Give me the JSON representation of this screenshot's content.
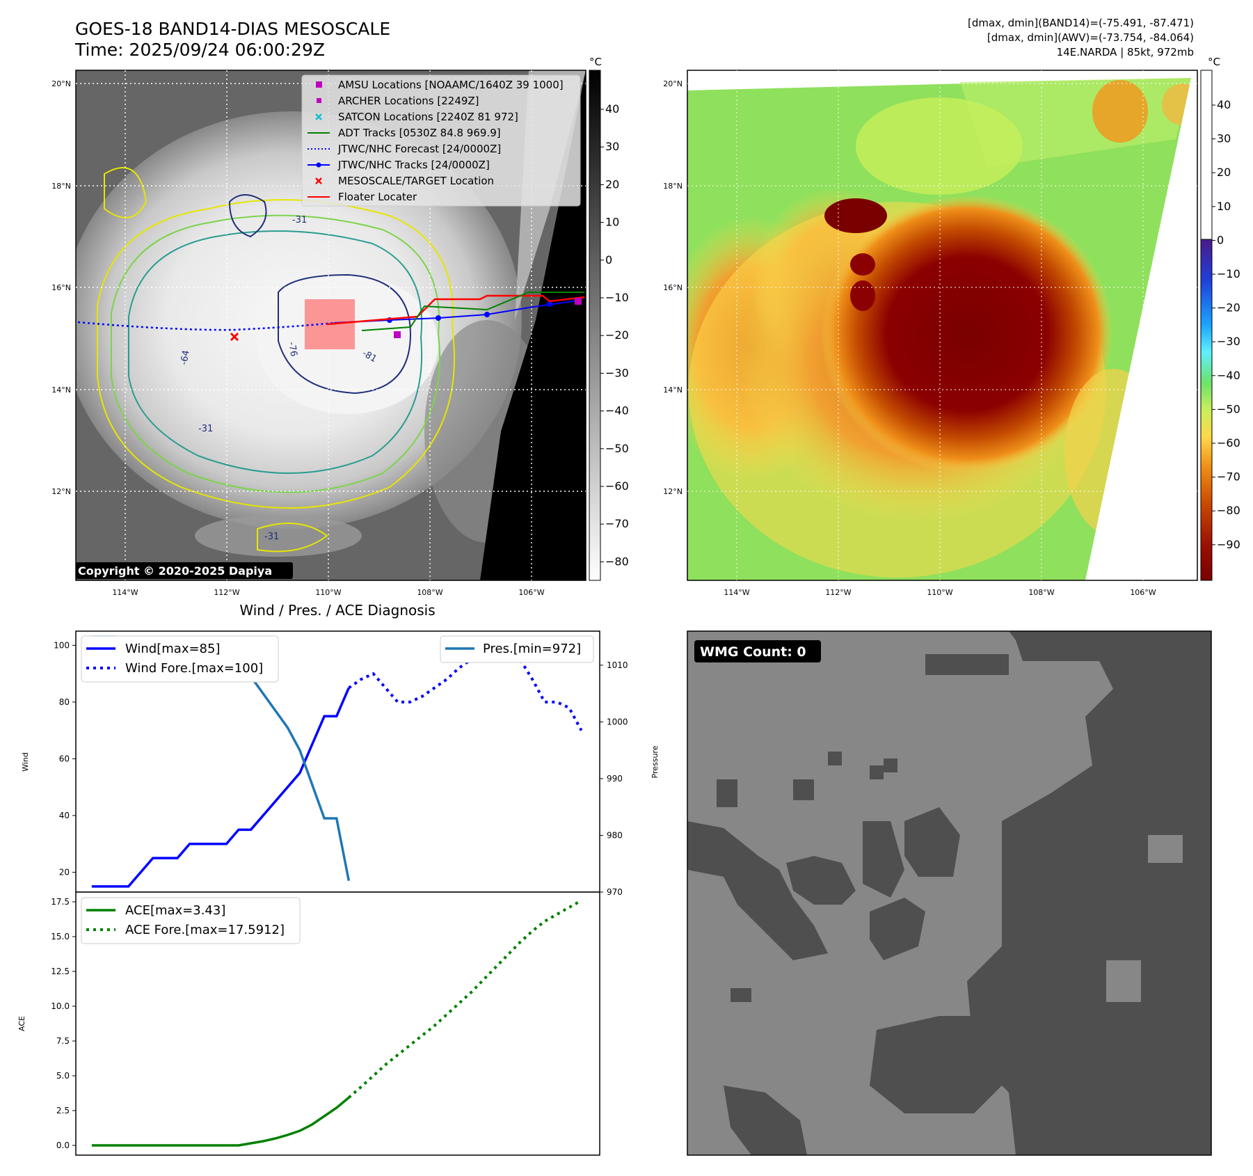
{
  "header": {
    "title_line1": "GOES-18 BAND14-DIAS MESOSCALE",
    "title_line2": "Time: 2025/09/24 06:00:29Z",
    "info_line1": "[dmax, dmin](BAND14)=(-75.491, -87.471)",
    "info_line2": "[dmax, dmin](AWV)=(-73.754, -84.064)",
    "info_line3": "14E.NARDA | 85kt, 972mb"
  },
  "ir_map": {
    "copyright": "Copyright © 2020-2025 Dapiya",
    "lat_labels": [
      "20°N",
      "18°N",
      "16°N",
      "14°N",
      "12°N"
    ],
    "lon_labels": [
      "114°W",
      "112°W",
      "110°W",
      "108°W",
      "106°W"
    ],
    "contour_labels": [
      "-31",
      "-64",
      "-76",
      "-81",
      "-31",
      "-31"
    ],
    "colorbar": {
      "unit": "°C",
      "ticks": [
        "40",
        "30",
        "20",
        "10",
        "0",
        "−10",
        "−20",
        "−30",
        "−40",
        "−50",
        "−60",
        "−70",
        "−80"
      ]
    },
    "legend": [
      {
        "label": "AMSU Locations [NOAAMC/1640Z 39 1000]",
        "color": "#c000c0",
        "marker": "square"
      },
      {
        "label": "ARCHER Locations [2249Z]",
        "color": "#c000c0",
        "marker": "square-small"
      },
      {
        "label": "SATCON Locations [2240Z 81 972]",
        "color": "#17becf",
        "marker": "x"
      },
      {
        "label": "ADT Tracks [0530Z 84.8 969.9]",
        "color": "#008000",
        "marker": "line"
      },
      {
        "label": "JTWC/NHC Forecast [24/0000Z]",
        "color": "#0000ff",
        "marker": "dotted"
      },
      {
        "label": "JTWC/NHC Tracks [24/0000Z]",
        "color": "#0000ff",
        "marker": "line-dot"
      },
      {
        "label": "MESOSCALE/TARGET Location",
        "color": "#ff0000",
        "marker": "x"
      },
      {
        "label": "Floater Locater",
        "color": "#ff0000",
        "marker": "line"
      }
    ]
  },
  "awv_map": {
    "lat_labels": [
      "20°N",
      "18°N",
      "16°N",
      "14°N",
      "12°N"
    ],
    "lon_labels": [
      "114°W",
      "112°W",
      "110°W",
      "108°W",
      "106°W"
    ],
    "colorbar": {
      "unit": "°C",
      "ticks": [
        "40",
        "30",
        "20",
        "10",
        "0",
        "−10",
        "−20",
        "−30",
        "−40",
        "−50",
        "−60",
        "−70",
        "−80",
        "−90"
      ]
    }
  },
  "diag_title": "Wind / Pres. / ACE Diagnosis",
  "wmg": {
    "label": "WMG Count: 0"
  },
  "chart_data": [
    {
      "type": "line",
      "title": "Wind / Pres. / ACE Diagnosis",
      "ylabel": "Wind",
      "y2label": "Pressure",
      "ylim": [
        13,
        105
      ],
      "y2lim": [
        970,
        1016
      ],
      "yticks": [
        "20",
        "40",
        "60",
        "80",
        "100"
      ],
      "y2ticks": [
        "970",
        "980",
        "990",
        "1000",
        "1010"
      ],
      "legend_left": [
        "Wind[max=85]",
        "Wind Fore.[max=100]"
      ],
      "legend_right": [
        "Pres.[min=972]"
      ],
      "series": [
        {
          "name": "Wind[max=85]",
          "color": "#0000ff",
          "style": "solid",
          "x": [
            0,
            1,
            2,
            3,
            4,
            5,
            6,
            7,
            8,
            9,
            10,
            11,
            12,
            13,
            14,
            15,
            16,
            17,
            18,
            19,
            20,
            21
          ],
          "values": [
            15,
            15,
            15,
            15,
            20,
            25,
            25,
            25,
            30,
            30,
            30,
            30,
            35,
            35,
            40,
            45,
            50,
            55,
            65,
            75,
            75,
            85
          ]
        },
        {
          "name": "Wind Fore.[max=100]",
          "color": "#0000ff",
          "style": "dotted",
          "x": [
            21,
            22,
            23,
            24,
            25,
            26,
            27,
            28,
            29,
            30,
            31,
            32,
            33,
            34,
            35,
            36,
            37,
            38,
            39,
            40
          ],
          "values": [
            85,
            88,
            90,
            85,
            80,
            80,
            82,
            85,
            88,
            92,
            95,
            100,
            95,
            95,
            95,
            88,
            80,
            80,
            78,
            70
          ]
        },
        {
          "name": "Pres.[min=972]",
          "color": "#1f77b4",
          "style": "solid",
          "axis": "right",
          "x": [
            0,
            1,
            2,
            3,
            4,
            5,
            6,
            7,
            8,
            9,
            10,
            11,
            12,
            13,
            14,
            15,
            16,
            17,
            18,
            19,
            20,
            21
          ],
          "values": [
            1015,
            1015,
            1015,
            1013,
            1011,
            1010,
            1010,
            1010,
            1010,
            1010,
            1010,
            1010,
            1008,
            1008,
            1005,
            1002,
            999,
            995,
            989,
            983,
            983,
            972
          ]
        }
      ]
    },
    {
      "type": "line",
      "ylabel": "ACE",
      "ylim": [
        -0.7,
        18.2
      ],
      "yticks": [
        "0.0",
        "2.5",
        "5.0",
        "7.5",
        "10.0",
        "12.5",
        "15.0",
        "17.5"
      ],
      "legend": [
        "ACE[max=3.43]",
        "ACE Fore.[max=17.5912]"
      ],
      "series": [
        {
          "name": "ACE[max=3.43]",
          "color": "#008000",
          "style": "solid",
          "x": [
            0,
            2,
            4,
            6,
            8,
            10,
            12,
            13,
            14,
            15,
            16,
            17,
            18,
            19,
            20,
            21
          ],
          "values": [
            0,
            0,
            0,
            0,
            0,
            0,
            0,
            0.15,
            0.3,
            0.5,
            0.75,
            1.05,
            1.5,
            2.1,
            2.7,
            3.43
          ]
        },
        {
          "name": "ACE Fore.[max=17.5912]",
          "color": "#008000",
          "style": "dotted",
          "x": [
            21,
            22,
            23,
            24,
            25,
            26,
            27,
            28,
            29,
            30,
            31,
            32,
            33,
            34,
            35,
            36,
            37,
            38,
            39,
            40
          ],
          "values": [
            3.43,
            4.2,
            5.0,
            5.8,
            6.5,
            7.2,
            7.9,
            8.6,
            9.4,
            10.2,
            11.0,
            11.9,
            12.8,
            13.7,
            14.6,
            15.4,
            16.1,
            16.6,
            17.1,
            17.59
          ]
        }
      ]
    }
  ]
}
